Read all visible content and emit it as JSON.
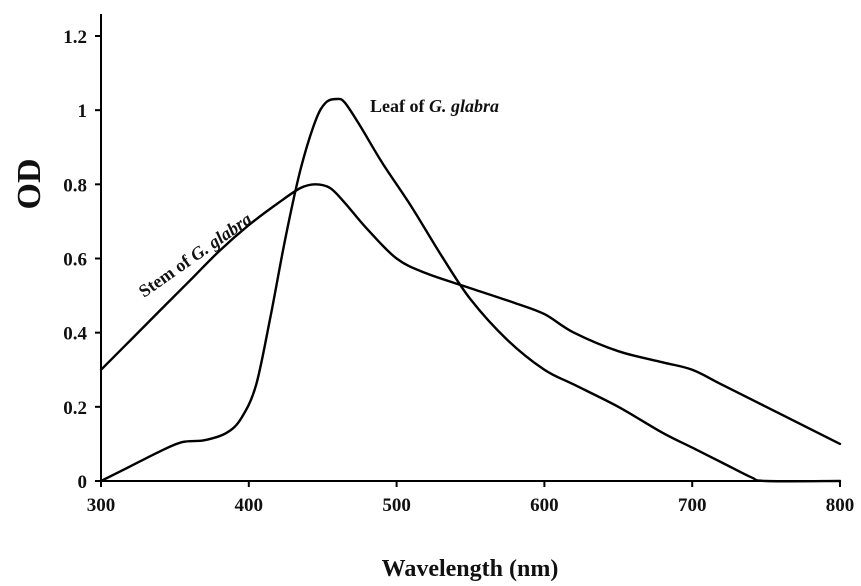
{
  "chart_data": {
    "type": "line",
    "xlabel": "Wavelength (nm)",
    "ylabel": "OD",
    "xlim": [
      300,
      800
    ],
    "ylim": [
      0,
      1.2
    ],
    "x_ticks": [
      "300",
      "400",
      "500",
      "600",
      "700",
      "800"
    ],
    "y_ticks": [
      "0",
      "0.2",
      "0.4",
      "0.6",
      "0.8",
      "1",
      "1.2"
    ],
    "grid": false,
    "legend": "none",
    "series": [
      {
        "name": "Leaf of G. glabra",
        "label_prefix": "Leaf of ",
        "label_italic": "G. glabra",
        "x": [
          300,
          320,
          340,
          355,
          370,
          385,
          395,
          405,
          415,
          425,
          435,
          445,
          452,
          460,
          465,
          475,
          490,
          510,
          530,
          550,
          575,
          600,
          620,
          650,
          680,
          700,
          720,
          740,
          750,
          800
        ],
        "y": [
          0.0,
          0.04,
          0.08,
          0.105,
          0.11,
          0.13,
          0.17,
          0.26,
          0.45,
          0.66,
          0.84,
          0.97,
          1.02,
          1.03,
          1.02,
          0.96,
          0.86,
          0.74,
          0.61,
          0.49,
          0.38,
          0.3,
          0.26,
          0.2,
          0.13,
          0.09,
          0.05,
          0.01,
          0.0,
          0.0
        ]
      },
      {
        "name": "Stem of G. glabra",
        "label_prefix": "Stem of ",
        "label_italic": "G. glabra",
        "x": [
          300,
          320,
          340,
          360,
          380,
          400,
          420,
          435,
          445,
          455,
          465,
          480,
          500,
          520,
          550,
          580,
          600,
          620,
          650,
          680,
          700,
          720,
          750,
          780,
          800
        ],
        "y": [
          0.3,
          0.38,
          0.46,
          0.54,
          0.62,
          0.69,
          0.75,
          0.79,
          0.8,
          0.79,
          0.75,
          0.68,
          0.6,
          0.56,
          0.52,
          0.48,
          0.45,
          0.4,
          0.35,
          0.32,
          0.3,
          0.26,
          0.2,
          0.14,
          0.1
        ]
      }
    ]
  }
}
